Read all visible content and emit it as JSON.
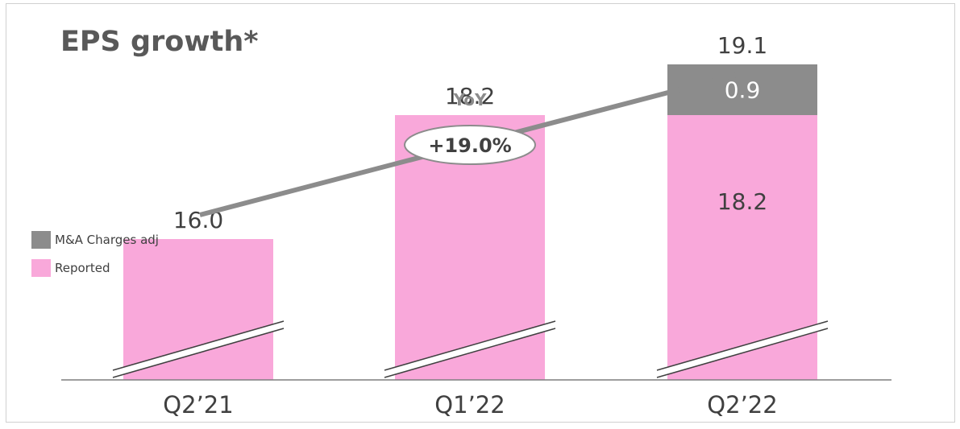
{
  "chart_data": {
    "type": "bar",
    "title": "EPS growth*",
    "categories": [
      "Q2’21",
      "Q1’22",
      "Q2’22"
    ],
    "series": [
      {
        "name": "Reported",
        "values": [
          16.0,
          18.2,
          18.2
        ],
        "color": "#f9a8da"
      },
      {
        "name": "M&A Charges adj",
        "values": [
          0,
          0,
          0.9
        ],
        "color": "#8c8c8c"
      }
    ],
    "totals": [
      "16.0",
      "18.2",
      "19.1"
    ],
    "segment_labels": {
      "reported_q2_22": "18.2",
      "adj_q2_22": "0.9"
    },
    "annotation": {
      "label": "YoY",
      "growth": "+19.0%"
    },
    "legend": [
      "M&A Charges adj",
      "Reported"
    ],
    "axis_break": true,
    "grid": false,
    "legend_position": "left",
    "ylim": [
      13.5,
      19.3
    ]
  }
}
